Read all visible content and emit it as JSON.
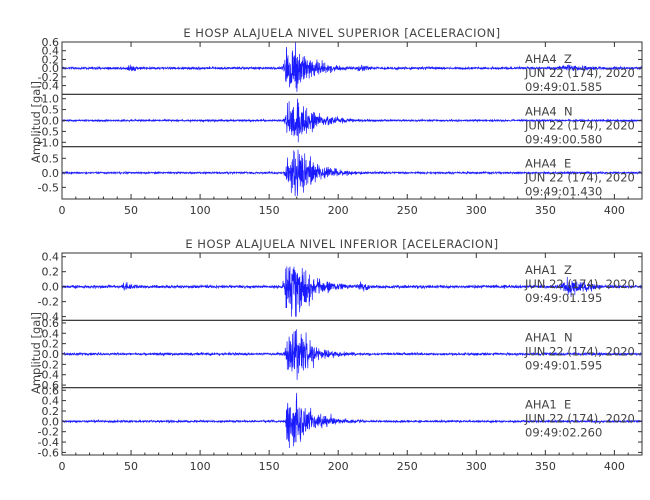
{
  "chart_data": [
    {
      "type": "line",
      "title": "E HOSP ALAJUELA NIVEL SUPERIOR [ACELERACION]",
      "ylabel": "Amplitud [gal]",
      "xlabel": "",
      "xlim": [
        0,
        420
      ],
      "x_ticks": [
        "0",
        "50",
        "100",
        "150",
        "200",
        "250",
        "300",
        "350",
        "400"
      ],
      "grid": false,
      "panels": [
        {
          "station": "AHA4",
          "component": "Z",
          "date_label": "JUN 22 (174), 2020",
          "time_label": "09:49:01.585",
          "ylim": [
            -0.6,
            0.6
          ],
          "y_ticks": [
            "0.6",
            "0.4",
            "0.2",
            "0.0",
            "-0.2",
            "-0.4"
          ],
          "color": "#1a1aff",
          "noise": 0.035,
          "peak": 0.6,
          "bursts": [
            [
              163,
              0.6,
              4
            ],
            [
              170,
              0.3,
              7
            ],
            [
              48,
              0.08,
              2
            ],
            [
              215,
              0.07,
              2
            ],
            [
              362,
              0.06,
              6
            ]
          ]
        },
        {
          "station": "AHA4",
          "component": "N",
          "date_label": "JUN 22 (174), 2020",
          "time_label": "09:49:00.580",
          "ylim": [
            -1.2,
            1.2
          ],
          "y_ticks": [
            "1.0",
            "0.5",
            "0.0",
            "-0.5",
            "-1.0"
          ],
          "color": "#1a1aff",
          "noise": 0.05,
          "peak": 1.0,
          "bursts": [
            [
              164,
              1.0,
              4
            ],
            [
              172,
              0.45,
              8
            ]
          ]
        },
        {
          "station": "AHA4",
          "component": "E",
          "date_label": "JUN 22 (174), 2020",
          "time_label": "09:49:01.430",
          "ylim": [
            -0.9,
            0.9
          ],
          "y_ticks": [
            "0.5",
            "0.0",
            "-0.5"
          ],
          "color": "#1a1aff",
          "noise": 0.04,
          "peak": 0.8,
          "bursts": [
            [
              164,
              0.8,
              4
            ],
            [
              171,
              0.45,
              8
            ]
          ]
        }
      ]
    },
    {
      "type": "line",
      "title": "E HOSP ALAJUELA NIVEL INFERIOR [ACELERACION]",
      "ylabel": "Amplitud [gal]",
      "xlabel": "",
      "xlim": [
        0,
        420
      ],
      "x_ticks": [
        "0",
        "50",
        "100",
        "150",
        "200",
        "250",
        "300",
        "350",
        "400"
      ],
      "grid": false,
      "panels": [
        {
          "station": "AHA1",
          "component": "Z",
          "date_label": "JUN 22 (174), 2020",
          "time_label": "09:49:01.195",
          "ylim": [
            -0.45,
            0.45
          ],
          "y_ticks": [
            "0.4",
            "0.2",
            "0.0",
            "-0.2",
            "-0.4"
          ],
          "color": "#1a1aff",
          "noise": 0.025,
          "peak": 0.4,
          "bursts": [
            [
              163,
              0.4,
              4
            ],
            [
              170,
              0.22,
              7
            ],
            [
              45,
              0.06,
              2
            ],
            [
              215,
              0.06,
              2
            ],
            [
              365,
              0.1,
              6
            ]
          ]
        },
        {
          "station": "AHA1",
          "component": "N",
          "date_label": "JUN 22 (174), 2020",
          "time_label": "09:49:01.595",
          "ylim": [
            -0.65,
            0.65
          ],
          "y_ticks": [
            "0.6",
            "0.4",
            "0.2",
            "0.0",
            "-0.2",
            "-0.4",
            "-0.6"
          ],
          "color": "#1a1aff",
          "noise": 0.03,
          "peak": 0.5,
          "bursts": [
            [
              164,
              0.5,
              4
            ],
            [
              171,
              0.2,
              7
            ]
          ]
        },
        {
          "station": "AHA1",
          "component": "E",
          "date_label": "JUN 22 (174), 2020",
          "time_label": "09:49:02.260",
          "ylim": [
            -0.65,
            0.65
          ],
          "y_ticks": [
            "0.6",
            "0.4",
            "0.2",
            "0.0",
            "-0.2",
            "-0.4",
            "-0.6"
          ],
          "color": "#1a1aff",
          "noise": 0.025,
          "peak": 0.55,
          "bursts": [
            [
              164,
              0.55,
              3
            ],
            [
              170,
              0.25,
              8
            ]
          ]
        }
      ]
    }
  ]
}
